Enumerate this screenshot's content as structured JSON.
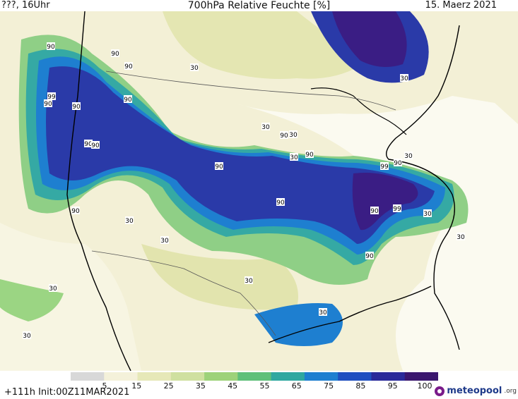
{
  "header": {
    "left": "???, 16Uhr",
    "center": "700hPa Relative Feuchte [%]",
    "right": "15. Maerz 2021"
  },
  "footer": {
    "init": "+111h Init:00Z11MAR2021",
    "brand": "meteopool",
    "brand_suffix": ".org"
  },
  "legend": {
    "ticks": [
      "5",
      "15",
      "25",
      "35",
      "45",
      "55",
      "65",
      "75",
      "85",
      "95",
      "100"
    ],
    "colors": [
      "#d8d8d8",
      "#f4f1da",
      "#e6e8b8",
      "#cfe0a0",
      "#9dd27a",
      "#5fc07a",
      "#2fa8a0",
      "#1e7fd0",
      "#1f4fc0",
      "#2a2a9a",
      "#3a166e"
    ]
  },
  "contour_labels": [
    "90",
    "90",
    "90",
    "99",
    "90",
    "90",
    "90",
    "90",
    "90",
    "30",
    "30",
    "30",
    "90",
    "90",
    "30",
    "99",
    "90",
    "90",
    "90",
    "99",
    "90",
    "30",
    "30",
    "30",
    "30",
    "30",
    "90",
    "30",
    "30",
    "30",
    "90",
    "30",
    "30"
  ]
}
